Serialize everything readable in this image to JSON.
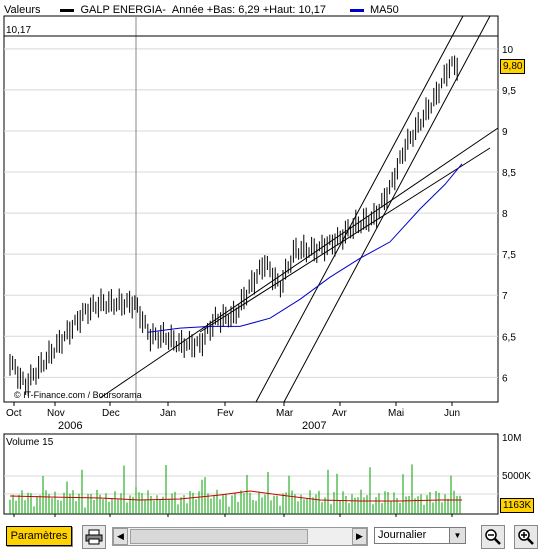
{
  "legend": {
    "label": "Valeurs",
    "symbol": "GALP ENERGIA-",
    "stats": "Année +Bas: 6,29 +Haut: 10,17",
    "ma": "MA50",
    "price_color": "#000000",
    "ma_color": "#0000cc"
  },
  "price_chart": {
    "hline_label": "10,17",
    "current_price": "9,80",
    "watermark": "© IT-Finance.com / Boursorama",
    "y_ticks": [
      "10",
      "9,5",
      "9",
      "8,5",
      "8",
      "7,5",
      "7",
      "6,5",
      "6"
    ],
    "months": [
      "Oct",
      "Nov",
      "Dec",
      "Jan",
      "Fev",
      "Mar",
      "Avr",
      "Mai",
      "Jun"
    ],
    "years": [
      "2006",
      "2007"
    ]
  },
  "volume_chart": {
    "title": "Volume 15",
    "y_ticks": [
      "10M",
      "5000K"
    ],
    "current": "1163K",
    "bar_color": "#00a000",
    "avg_color": "#cc0000"
  },
  "chart_data": [
    {
      "type": "line",
      "title": "GALP ENERGIA-",
      "x": [
        "Oct",
        "Nov",
        "Dec",
        "Jan",
        "Fev",
        "Mar",
        "Avr",
        "Mai",
        "Jun"
      ],
      "series": [
        {
          "name": "GALP ENERGIA-",
          "values": [
            6.0,
            6.4,
            6.9,
            6.5,
            6.6,
            7.3,
            7.8,
            8.3,
            9.8
          ]
        },
        {
          "name": "MA50",
          "values": [
            null,
            null,
            null,
            6.5,
            6.6,
            6.9,
            7.2,
            7.7,
            8.5
          ]
        }
      ],
      "ylim": [
        5.7,
        10.4
      ],
      "grid": true
    },
    {
      "type": "bar",
      "title": "Volume 15",
      "x": [
        "Oct",
        "Nov",
        "Dec",
        "Jan",
        "Fev",
        "Mar",
        "Avr",
        "Mai",
        "Jun"
      ],
      "ylim": [
        0,
        10000000
      ],
      "current": "1163K"
    }
  ],
  "toolbar": {
    "params_label": "Paramètres",
    "period": "Journalier"
  }
}
